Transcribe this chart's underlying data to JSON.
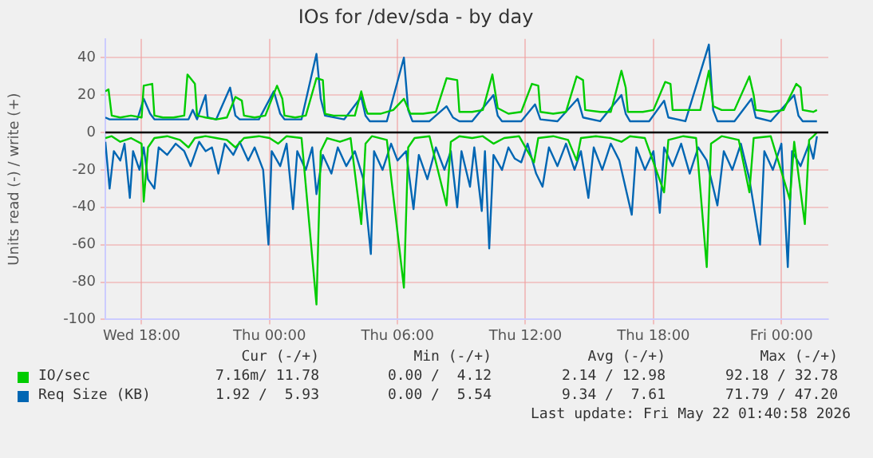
{
  "chart_data": {
    "type": "line",
    "title": "IOs for /dev/sda - by day",
    "ylabel": "Units read (-) / write (+)",
    "xlim": [
      "2026-05-20T16:18",
      "2026-05-22T02:12"
    ],
    "xticks": [
      {
        "value": "2026-05-20T18:00",
        "label": "Wed 18:00"
      },
      {
        "value": "2026-05-21T00:00",
        "label": "Thu 00:00"
      },
      {
        "value": "2026-05-21T06:00",
        "label": "Thu 06:00"
      },
      {
        "value": "2026-05-21T12:00",
        "label": "Thu 12:00"
      },
      {
        "value": "2026-05-21T18:00",
        "label": "Thu 18:00"
      },
      {
        "value": "2026-05-22T00:00",
        "label": "Fri 00:00"
      }
    ],
    "ylim": [
      -100,
      50
    ],
    "yticks": [
      -100,
      -80,
      -60,
      -40,
      -20,
      0,
      20,
      40
    ],
    "grid": true,
    "legend": "bottom",
    "marker": "none",
    "line_style": "solid",
    "ref_lines": [
      {
        "axis": "y",
        "value": 0,
        "color": "#000000"
      }
    ],
    "series": [
      {
        "name": "IO/sec",
        "color": "#00cc00",
        "x": [
          "2026-05-20T16:18",
          "2026-05-20T16:27",
          "2026-05-20T16:36",
          "2026-05-20T17:00",
          "2026-05-20T17:30",
          "2026-05-20T18:00",
          "2026-05-20T18:06",
          "2026-05-20T18:30",
          "2026-05-20T18:36",
          "2026-05-20T19:00",
          "2026-05-20T19:30",
          "2026-05-20T20:00",
          "2026-05-20T20:09",
          "2026-05-20T20:30",
          "2026-05-20T20:36",
          "2026-05-20T21:00",
          "2026-05-20T21:30",
          "2026-05-20T22:00",
          "2026-05-20T22:24",
          "2026-05-20T22:42",
          "2026-05-20T22:48",
          "2026-05-20T23:18",
          "2026-05-20T23:48",
          "2026-05-21T00:21",
          "2026-05-21T00:36",
          "2026-05-21T00:42",
          "2026-05-21T01:12",
          "2026-05-21T01:42",
          "2026-05-21T02:12",
          "2026-05-21T02:30",
          "2026-05-21T02:36",
          "2026-05-21T03:00",
          "2026-05-21T03:30",
          "2026-05-21T04:00",
          "2026-05-21T04:18",
          "2026-05-21T04:30",
          "2026-05-21T04:36",
          "2026-05-21T05:12",
          "2026-05-21T05:48",
          "2026-05-21T06:18",
          "2026-05-21T06:36",
          "2026-05-21T07:12",
          "2026-05-21T07:48",
          "2026-05-21T08:18",
          "2026-05-21T08:48",
          "2026-05-21T08:54",
          "2026-05-21T09:30",
          "2026-05-21T10:00",
          "2026-05-21T10:27",
          "2026-05-21T10:42",
          "2026-05-21T11:12",
          "2026-05-21T11:48",
          "2026-05-21T12:18",
          "2026-05-21T12:36",
          "2026-05-21T12:42",
          "2026-05-21T13:18",
          "2026-05-21T13:54",
          "2026-05-21T14:24",
          "2026-05-21T14:42",
          "2026-05-21T14:48",
          "2026-05-21T15:30",
          "2026-05-21T16:00",
          "2026-05-21T16:30",
          "2026-05-21T16:42",
          "2026-05-21T16:48",
          "2026-05-21T17:30",
          "2026-05-21T18:00",
          "2026-05-21T18:33",
          "2026-05-21T18:48",
          "2026-05-21T18:54",
          "2026-05-21T19:36",
          "2026-05-21T20:12",
          "2026-05-21T20:36",
          "2026-05-21T20:48",
          "2026-05-21T21:12",
          "2026-05-21T21:48",
          "2026-05-21T22:30",
          "2026-05-21T22:42",
          "2026-05-21T22:48",
          "2026-05-21T23:30",
          "2026-05-22T00:06",
          "2026-05-22T00:42",
          "2026-05-22T00:54",
          "2026-05-22T01:00",
          "2026-05-22T01:30",
          "2026-05-22T01:40"
        ],
        "values": [
          22,
          23,
          9,
          8,
          9,
          8,
          25,
          26,
          9,
          8,
          8,
          9,
          31,
          26,
          9,
          8,
          7,
          8,
          19,
          17,
          9,
          8,
          9,
          25,
          18,
          9,
          8,
          9,
          29,
          28,
          10,
          9,
          9,
          9,
          22,
          13,
          10,
          10,
          12,
          18,
          10,
          10,
          11,
          29,
          28,
          11,
          11,
          12,
          31,
          13,
          10,
          11,
          26,
          25,
          11,
          10,
          11,
          30,
          28,
          12,
          11,
          11,
          33,
          24,
          11,
          11,
          12,
          27,
          26,
          12,
          12,
          12,
          33,
          14,
          12,
          12,
          30,
          20,
          12,
          11,
          12,
          26,
          24,
          12,
          11,
          12
        ]
      },
      {
        "name": "Req Size (KB)",
        "color": "#0066b3",
        "x": [
          "2026-05-20T16:18",
          "2026-05-20T16:30",
          "2026-05-20T17:00",
          "2026-05-20T17:48",
          "2026-05-20T18:06",
          "2026-05-20T18:24",
          "2026-05-20T18:36",
          "2026-05-20T19:30",
          "2026-05-20T20:12",
          "2026-05-20T20:24",
          "2026-05-20T20:36",
          "2026-05-20T21:00",
          "2026-05-20T21:06",
          "2026-05-20T21:30",
          "2026-05-20T22:09",
          "2026-05-20T22:24",
          "2026-05-20T22:36",
          "2026-05-20T23:30",
          "2026-05-21T00:12",
          "2026-05-21T00:30",
          "2026-05-21T00:42",
          "2026-05-21T01:30",
          "2026-05-21T02:12",
          "2026-05-21T02:24",
          "2026-05-21T02:36",
          "2026-05-21T03:30",
          "2026-05-21T04:18",
          "2026-05-21T04:30",
          "2026-05-21T04:42",
          "2026-05-21T05:30",
          "2026-05-21T06:18",
          "2026-05-21T06:30",
          "2026-05-21T06:42",
          "2026-05-21T07:30",
          "2026-05-21T08:18",
          "2026-05-21T08:36",
          "2026-05-21T08:54",
          "2026-05-21T09:30",
          "2026-05-21T10:30",
          "2026-05-21T10:42",
          "2026-05-21T10:54",
          "2026-05-21T11:48",
          "2026-05-21T12:27",
          "2026-05-21T12:42",
          "2026-05-21T13:30",
          "2026-05-21T14:27",
          "2026-05-21T14:42",
          "2026-05-21T15:30",
          "2026-05-21T16:30",
          "2026-05-21T16:42",
          "2026-05-21T16:54",
          "2026-05-21T17:48",
          "2026-05-21T18:30",
          "2026-05-21T18:42",
          "2026-05-21T19:30",
          "2026-05-21T20:36",
          "2026-05-21T20:48",
          "2026-05-21T21:00",
          "2026-05-21T21:48",
          "2026-05-21T22:36",
          "2026-05-21T22:48",
          "2026-05-21T23:30",
          "2026-05-22T00:36",
          "2026-05-22T00:48",
          "2026-05-22T01:00",
          "2026-05-22T01:40"
        ],
        "values": [
          8,
          7,
          7,
          7,
          18,
          10,
          7,
          7,
          7,
          12,
          7,
          20,
          8,
          7,
          24,
          9,
          7,
          7,
          22,
          10,
          7,
          7,
          42,
          18,
          9,
          7,
          19,
          9,
          6,
          6,
          40,
          12,
          6,
          6,
          14,
          8,
          6,
          6,
          20,
          9,
          6,
          6,
          15,
          7,
          6,
          18,
          8,
          6,
          20,
          10,
          6,
          6,
          17,
          8,
          6,
          47,
          12,
          6,
          6,
          18,
          8,
          6,
          20,
          9,
          6,
          6
        ]
      },
      {
        "color": "#00cc00",
        "x": [
          "2026-05-20T16:18",
          "2026-05-20T16:36",
          "2026-05-20T17:00",
          "2026-05-20T17:30",
          "2026-05-20T18:00",
          "2026-05-20T18:06",
          "2026-05-20T18:18",
          "2026-05-20T18:36",
          "2026-05-20T19:12",
          "2026-05-20T19:48",
          "2026-05-20T20:12",
          "2026-05-20T20:30",
          "2026-05-20T21:00",
          "2026-05-20T21:30",
          "2026-05-20T22:00",
          "2026-05-20T22:24",
          "2026-05-20T22:48",
          "2026-05-20T23:30",
          "2026-05-21T00:00",
          "2026-05-21T00:24",
          "2026-05-21T00:48",
          "2026-05-21T01:30",
          "2026-05-21T02:12",
          "2026-05-21T02:24",
          "2026-05-21T02:42",
          "2026-05-21T03:18",
          "2026-05-21T03:48",
          "2026-05-21T04:18",
          "2026-05-21T04:30",
          "2026-05-21T04:48",
          "2026-05-21T05:30",
          "2026-05-21T06:18",
          "2026-05-21T06:30",
          "2026-05-21T06:48",
          "2026-05-21T07:30",
          "2026-05-21T08:18",
          "2026-05-21T08:30",
          "2026-05-21T08:54",
          "2026-05-21T09:30",
          "2026-05-21T10:00",
          "2026-05-21T10:30",
          "2026-05-21T11:00",
          "2026-05-21T11:42",
          "2026-05-21T12:24",
          "2026-05-21T12:36",
          "2026-05-21T13:18",
          "2026-05-21T14:00",
          "2026-05-21T14:24",
          "2026-05-21T14:36",
          "2026-05-21T15:18",
          "2026-05-21T16:00",
          "2026-05-21T16:30",
          "2026-05-21T16:54",
          "2026-05-21T17:36",
          "2026-05-21T18:30",
          "2026-05-21T18:42",
          "2026-05-21T19:24",
          "2026-05-21T20:00",
          "2026-05-21T20:30",
          "2026-05-21T20:42",
          "2026-05-21T21:12",
          "2026-05-21T22:00",
          "2026-05-21T22:30",
          "2026-05-21T22:42",
          "2026-05-21T23:30",
          "2026-05-22T00:24",
          "2026-05-22T00:36",
          "2026-05-22T01:06",
          "2026-05-22T01:18",
          "2026-05-22T01:30",
          "2026-05-22T01:40"
        ],
        "values": [
          -3,
          -2,
          -5,
          -3,
          -6,
          -37,
          -8,
          -3,
          -2,
          -4,
          -8,
          -3,
          -2,
          -3,
          -4,
          -8,
          -3,
          -2,
          -3,
          -6,
          -2,
          -3,
          -92,
          -10,
          -3,
          -5,
          -3,
          -49,
          -6,
          -2,
          -4,
          -83,
          -8,
          -3,
          -2,
          -39,
          -5,
          -2,
          -3,
          -2,
          -6,
          -3,
          -2,
          -16,
          -3,
          -2,
          -4,
          -15,
          -3,
          -2,
          -3,
          -5,
          -2,
          -3,
          -32,
          -4,
          -2,
          -3,
          -72,
          -6,
          -2,
          -4,
          -32,
          -3,
          -2,
          -36,
          -5,
          -49,
          -4,
          -2,
          0
        ]
      },
      {
        "color": "#0066b3",
        "x": [
          "2026-05-20T16:18",
          "2026-05-20T16:30",
          "2026-05-20T16:42",
          "2026-05-20T17:00",
          "2026-05-20T17:12",
          "2026-05-20T17:27",
          "2026-05-20T17:36",
          "2026-05-20T17:54",
          "2026-05-20T18:06",
          "2026-05-20T18:18",
          "2026-05-20T18:36",
          "2026-05-20T18:48",
          "2026-05-20T19:12",
          "2026-05-20T19:36",
          "2026-05-20T20:00",
          "2026-05-20T20:18",
          "2026-05-20T20:42",
          "2026-05-20T21:00",
          "2026-05-20T21:18",
          "2026-05-20T21:36",
          "2026-05-20T21:54",
          "2026-05-20T22:18",
          "2026-05-20T22:36",
          "2026-05-20T23:00",
          "2026-05-20T23:18",
          "2026-05-20T23:42",
          "2026-05-20T23:57",
          "2026-05-21T00:06",
          "2026-05-21T00:30",
          "2026-05-21T00:48",
          "2026-05-21T01:06",
          "2026-05-21T01:18",
          "2026-05-21T01:42",
          "2026-05-21T02:00",
          "2026-05-21T02:12",
          "2026-05-21T02:30",
          "2026-05-21T02:54",
          "2026-05-21T03:12",
          "2026-05-21T03:36",
          "2026-05-21T04:00",
          "2026-05-21T04:24",
          "2026-05-21T04:45",
          "2026-05-21T04:54",
          "2026-05-21T05:18",
          "2026-05-21T05:42",
          "2026-05-21T06:00",
          "2026-05-21T06:24",
          "2026-05-21T06:45",
          "2026-05-21T07:00",
          "2026-05-21T07:24",
          "2026-05-21T07:48",
          "2026-05-21T08:12",
          "2026-05-21T08:30",
          "2026-05-21T08:48",
          "2026-05-21T09:00",
          "2026-05-21T09:24",
          "2026-05-21T09:36",
          "2026-05-21T09:57",
          "2026-05-21T10:06",
          "2026-05-21T10:18",
          "2026-05-21T10:30",
          "2026-05-21T10:54",
          "2026-05-21T11:12",
          "2026-05-21T11:30",
          "2026-05-21T11:48",
          "2026-05-21T12:06",
          "2026-05-21T12:30",
          "2026-05-21T12:48",
          "2026-05-21T13:06",
          "2026-05-21T13:30",
          "2026-05-21T13:54",
          "2026-05-21T14:18",
          "2026-05-21T14:36",
          "2026-05-21T14:57",
          "2026-05-21T15:12",
          "2026-05-21T15:36",
          "2026-05-21T16:00",
          "2026-05-21T16:24",
          "2026-05-21T16:59",
          "2026-05-21T17:12",
          "2026-05-21T17:36",
          "2026-05-21T18:00",
          "2026-05-21T18:18",
          "2026-05-21T18:30",
          "2026-05-21T18:54",
          "2026-05-21T19:18",
          "2026-05-21T19:42",
          "2026-05-21T20:06",
          "2026-05-21T20:30",
          "2026-05-21T21:00",
          "2026-05-21T21:18",
          "2026-05-21T21:42",
          "2026-05-21T22:06",
          "2026-05-21T22:30",
          "2026-05-21T23:00",
          "2026-05-21T23:12",
          "2026-05-21T23:36",
          "2026-05-22T00:00",
          "2026-05-22T00:18",
          "2026-05-22T00:30",
          "2026-05-22T00:54",
          "2026-05-22T01:18",
          "2026-05-22T01:30",
          "2026-05-22T01:40"
        ],
        "values": [
          -5,
          -30,
          -10,
          -15,
          -6,
          -35,
          -10,
          -20,
          -8,
          -25,
          -30,
          -8,
          -12,
          -6,
          -10,
          -18,
          -5,
          -10,
          -8,
          -22,
          -6,
          -12,
          -5,
          -15,
          -8,
          -20,
          -60,
          -10,
          -18,
          -6,
          -41,
          -10,
          -20,
          -8,
          -33,
          -12,
          -22,
          -8,
          -18,
          -10,
          -25,
          -65,
          -10,
          -20,
          -6,
          -15,
          -10,
          -41,
          -12,
          -25,
          -8,
          -20,
          -10,
          -40,
          -10,
          -29,
          -8,
          -42,
          -10,
          -62,
          -12,
          -20,
          -8,
          -14,
          -16,
          -6,
          -22,
          -29,
          -8,
          -18,
          -6,
          -20,
          -10,
          -35,
          -8,
          -20,
          -6,
          -15,
          -44,
          -8,
          -20,
          -10,
          -43,
          -8,
          -18,
          -6,
          -22,
          -8,
          -15,
          -39,
          -10,
          -20,
          -6,
          -25,
          -60,
          -10,
          -20,
          -6,
          -72,
          -10,
          -18,
          -6,
          -14,
          -2
        ]
      }
    ],
    "annotations": [
      "Cur (-/+)",
      "Min (-/+)",
      "Avg (-/+)",
      "Max (-/+)",
      "7.16m/ 11.78",
      "0.00 /  4.12",
      "2.14 / 12.98",
      "92.18 / 32.78",
      "1.92 /  5.93",
      "0.00 /  5.54",
      "9.34 /  7.61",
      "71.79 / 47.20",
      "Last update: Fri May 22 01:40:58 2026"
    ]
  }
}
